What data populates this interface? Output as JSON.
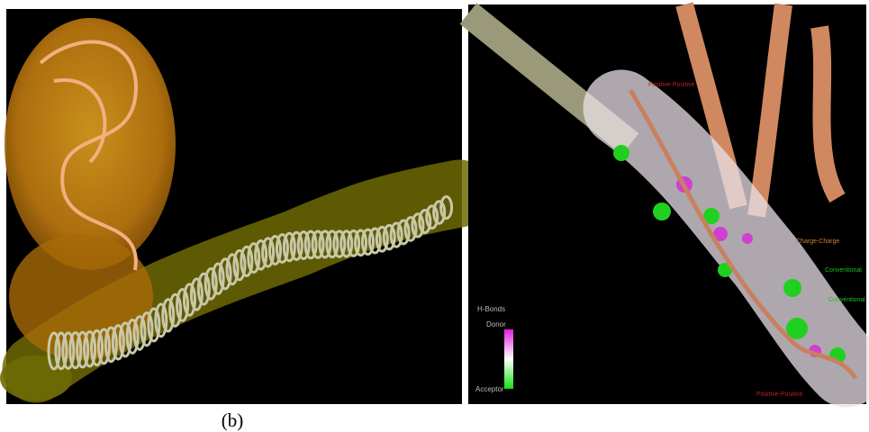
{
  "caption": "(b)",
  "legend": {
    "title": "H-Bonds",
    "top": "Donor",
    "bottom": "Acceptor"
  },
  "labels": [
    "Positive-Positive",
    "Charge-Charge",
    "Conventional",
    "Conventional",
    "Positive-Positive"
  ]
}
